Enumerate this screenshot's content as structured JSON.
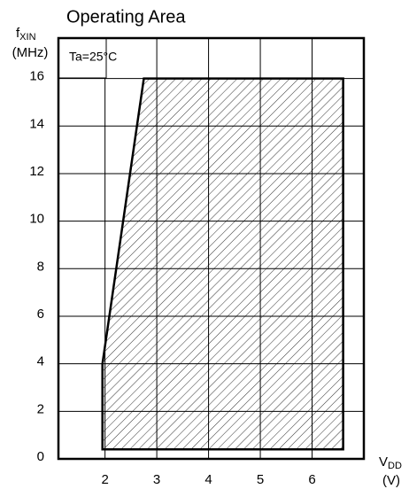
{
  "chart_data": {
    "type": "area",
    "title": "Operating Area",
    "ylabel": {
      "text": "f",
      "subscript": "XIN",
      "unit": "(MHz)"
    },
    "xlabel": {
      "text": "V",
      "subscript": "DD",
      "unit": "(V)"
    },
    "annotation": "Ta=25°C",
    "x": [
      1.95,
      1.95,
      2.75,
      6.6,
      6.6
    ],
    "values": [
      0.4,
      4,
      16,
      16,
      0.4
    ],
    "color": "#000000",
    "hatch": true,
    "grid": true,
    "xlim": [
      1.1,
      7.0
    ],
    "ylim": [
      0,
      17.7
    ],
    "xticks": [
      2,
      3,
      4,
      5,
      6
    ],
    "yticks": [
      0,
      2,
      4,
      6,
      8,
      10,
      12,
      14,
      16
    ]
  }
}
